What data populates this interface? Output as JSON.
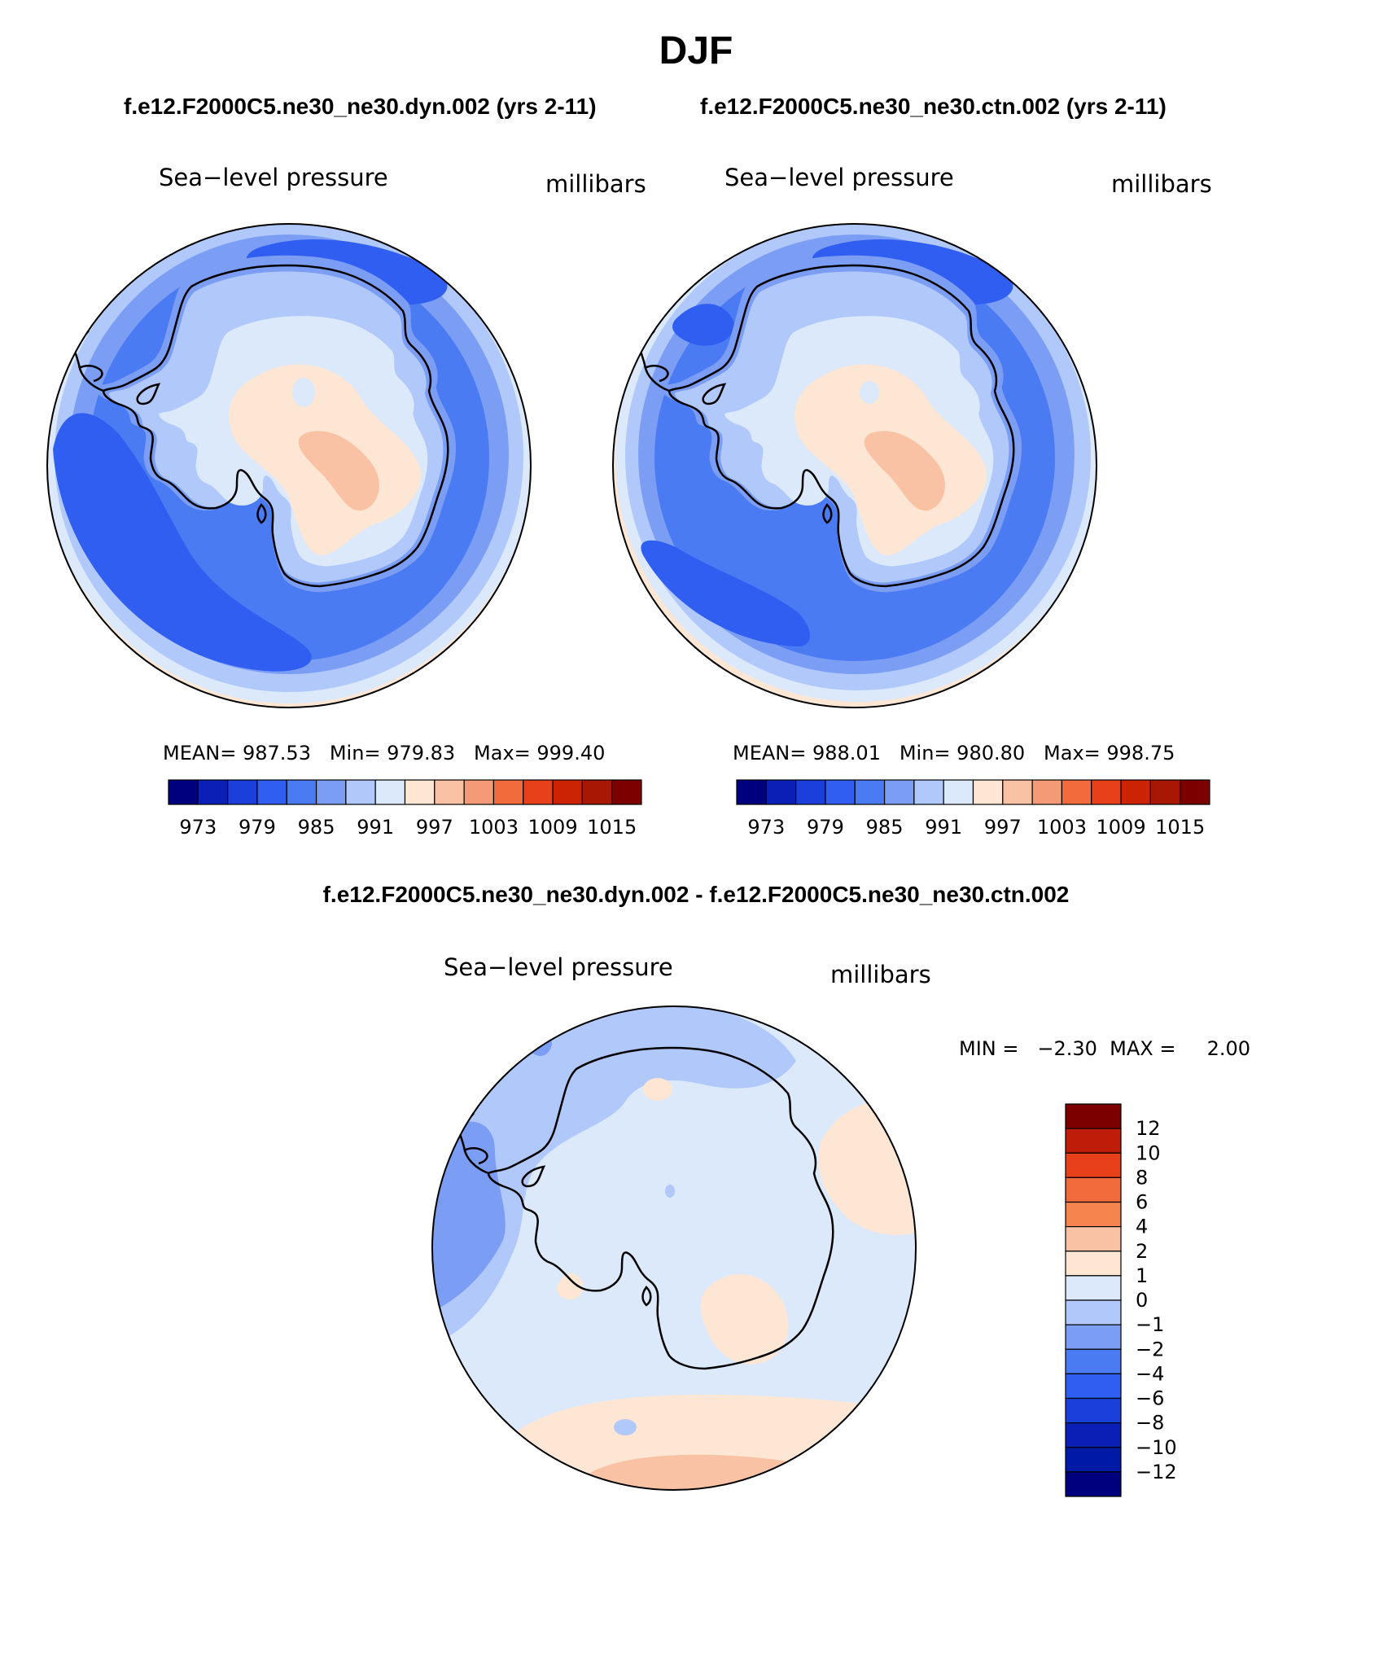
{
  "figure": {
    "season": "DJF",
    "subtitle_left": "f.e12.F2000C5.ne30_ne30.dyn.002 (yrs 2-11)",
    "subtitle_right": "f.e12.F2000C5.ne30_ne30.ctn.002 (yrs 2-11)",
    "diff_title": "f.e12.F2000C5.ne30_ne30.dyn.002 - f.e12.F2000C5.ne30_ne30.ctn.002"
  },
  "chart_data": [
    {
      "type": "heatmap",
      "projection": "south-polar-stereographic",
      "title": "Sea−level pressure",
      "units": "millibars",
      "stats": "MEAN= 987.53   Min= 979.83   Max= 999.40",
      "mean": 987.53,
      "min": 979.83,
      "max": 999.4,
      "levels": [
        "973",
        "979",
        "985",
        "991",
        "997",
        "1003",
        "1009",
        "1015"
      ],
      "colors": [
        "#00007f",
        "#0a1fb5",
        "#1a3fdb",
        "#2f5ef0",
        "#4b7bf2",
        "#7b9ef4",
        "#b0c8fa",
        "#dbe9fb",
        "#fde6d4",
        "#f9c2a5",
        "#f59a77",
        "#f26b3d",
        "#e8401a",
        "#cc2305",
        "#a81703",
        "#7c0000"
      ]
    },
    {
      "type": "heatmap",
      "projection": "south-polar-stereographic",
      "title": "Sea−level pressure",
      "units": "millibars",
      "stats": "MEAN= 988.01   Min= 980.80   Max= 998.75",
      "mean": 988.01,
      "min": 980.8,
      "max": 998.75,
      "levels": [
        "973",
        "979",
        "985",
        "991",
        "997",
        "1003",
        "1009",
        "1015"
      ],
      "colors": [
        "#00007f",
        "#0a1fb5",
        "#1a3fdb",
        "#2f5ef0",
        "#4b7bf2",
        "#7b9ef4",
        "#b0c8fa",
        "#dbe9fb",
        "#fde6d4",
        "#f9c2a5",
        "#f59a77",
        "#f26b3d",
        "#e8401a",
        "#cc2305",
        "#a81703",
        "#7c0000"
      ]
    },
    {
      "type": "heatmap",
      "projection": "south-polar-stereographic",
      "title": "Sea−level pressure",
      "units": "millibars",
      "stats": "MIN =   −2.30  MAX =     2.00",
      "min": -2.3,
      "max": 2.0,
      "levels": [
        "12",
        "10",
        "8",
        "6",
        "4",
        "2",
        "1",
        "0",
        "−1",
        "−2",
        "−4",
        "−6",
        "−8",
        "−10",
        "−12"
      ],
      "colors": [
        "#7c0000",
        "#bf1c0a",
        "#e8401a",
        "#f26b3d",
        "#f5844f",
        "#f9c2a5",
        "#fde6d4",
        "#dbe9fb",
        "#b0c8fa",
        "#7b9ef4",
        "#4b7bf2",
        "#2f5ef0",
        "#1a3fdb",
        "#0a1fb5",
        "#001aa8",
        "#00007f"
      ]
    }
  ]
}
